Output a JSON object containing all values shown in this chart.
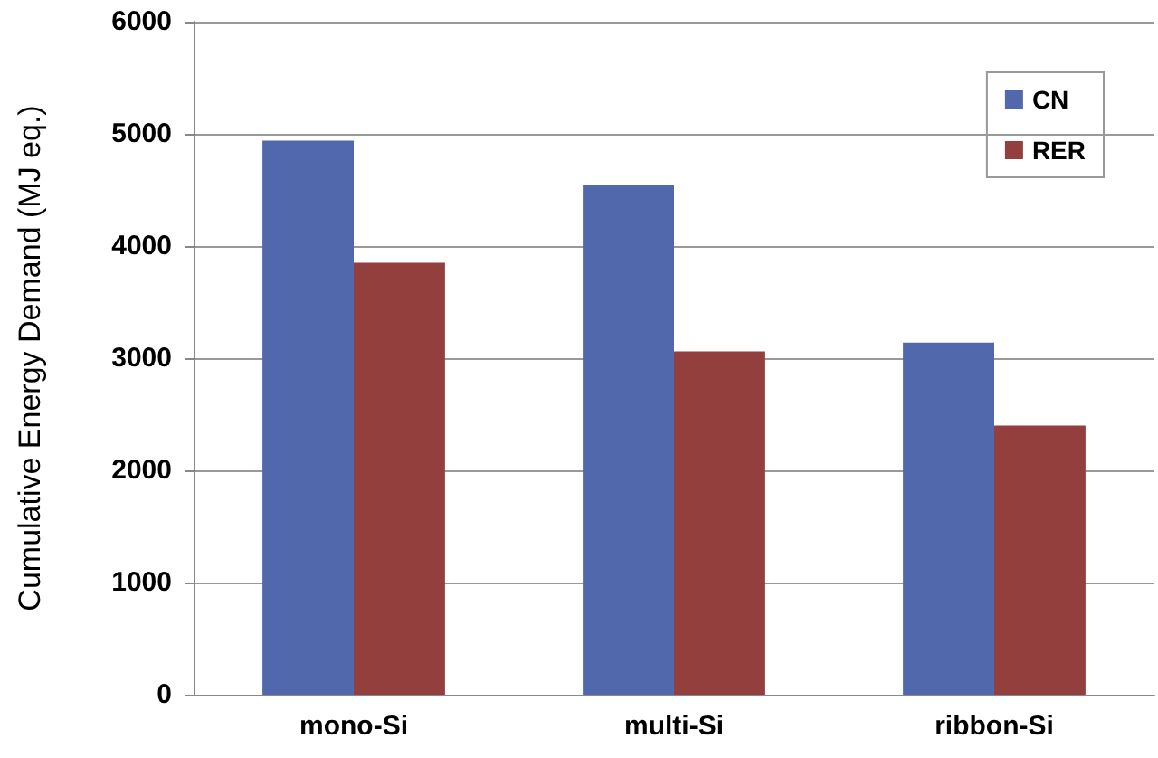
{
  "chart_data": {
    "type": "bar",
    "ylabel": "Cumulative Energy Demand (MJ eq.)",
    "categories": [
      "mono-Si",
      "multi-Si",
      "ribbon-Si"
    ],
    "series": [
      {
        "name": "CN",
        "color": "#5268ad",
        "values": [
          4940,
          4540,
          3140
        ]
      },
      {
        "name": "RER",
        "color": "#923f3e",
        "values": [
          3850,
          3060,
          2400
        ]
      }
    ],
    "ylim": [
      0,
      6000
    ],
    "yticks": [
      0,
      1000,
      2000,
      3000,
      4000,
      5000,
      6000
    ],
    "grid": "y",
    "legend": "top right"
  }
}
